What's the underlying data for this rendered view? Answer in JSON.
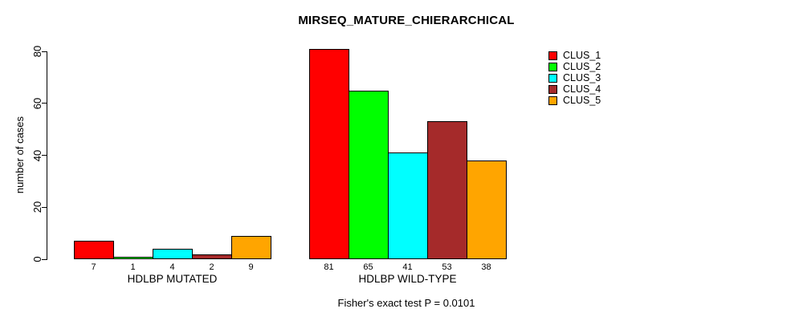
{
  "chart_data": {
    "type": "bar",
    "title": "MIRSEQ_MATURE_CHIERARCHICAL",
    "ylabel": "number of cases",
    "ylim": [
      0,
      80
    ],
    "yticks": [
      "0",
      "20",
      "40",
      "60",
      "80"
    ],
    "grid": false,
    "legend_position": "top-right",
    "categories": [
      "HDLBP MUTATED",
      "HDLBP WILD-TYPE"
    ],
    "series": [
      {
        "name": "CLUS_1",
        "color": "#FF0000",
        "values": [
          7,
          81
        ]
      },
      {
        "name": "CLUS_2",
        "color": "#00FF00",
        "values": [
          1,
          65
        ]
      },
      {
        "name": "CLUS_3",
        "color": "#00FFFF",
        "values": [
          4,
          41
        ]
      },
      {
        "name": "CLUS_4",
        "color": "#A52A2A",
        "values": [
          2,
          53
        ]
      },
      {
        "name": "CLUS_5",
        "color": "#FFA500",
        "values": [
          9,
          38
        ]
      }
    ],
    "bar_value_labels": true,
    "footnote": "Fisher's exact test P = 0.0101"
  }
}
